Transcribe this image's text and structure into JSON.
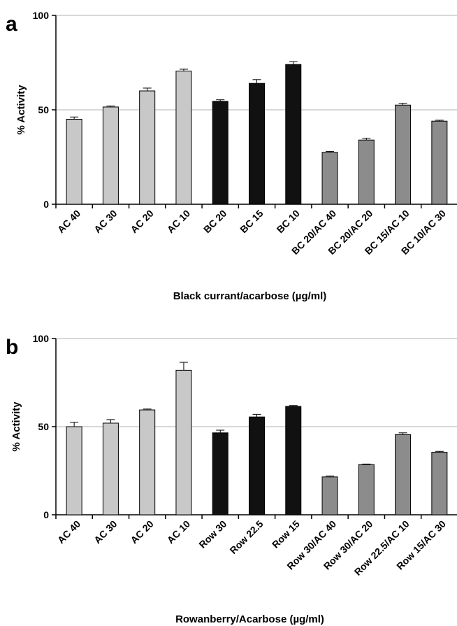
{
  "colors": {
    "ac": "#c8c8c8",
    "berry": "#111111",
    "combo": "#8c8c8c",
    "gridline": "#b0b0b0"
  },
  "chart_data": [
    {
      "type": "bar",
      "panel_label": "a",
      "categories": [
        "AC 40",
        "AC 30",
        "AC 20",
        "AC 10",
        "BC 20",
        "BC 15",
        "BC 10",
        "BC 20/AC 40",
        "BC 20/AC 20",
        "BC 15/AC 10",
        "BC 10/AC 30"
      ],
      "values": [
        45,
        51.5,
        60,
        70.5,
        54.5,
        64,
        74,
        27.5,
        34,
        52.5,
        44
      ],
      "errors": [
        1.2,
        0.5,
        1.5,
        1.0,
        0.8,
        2.0,
        1.5,
        0.5,
        1.0,
        1.0,
        0.5
      ],
      "groups": [
        "ac",
        "ac",
        "ac",
        "ac",
        "berry",
        "berry",
        "berry",
        "combo",
        "combo",
        "combo",
        "combo"
      ],
      "xlabel": "Black currant/acarbose (µg/ml)",
      "ylabel": "% Activity",
      "ylim": [
        0,
        100
      ],
      "yticks": [
        0,
        50,
        100
      ],
      "grid": "horizontal at 50 and 100"
    },
    {
      "type": "bar",
      "panel_label": "b",
      "categories": [
        "AC 40",
        "AC 30",
        "AC 20",
        "AC 10",
        "Row 30",
        "Row 22.5",
        "Row 15",
        "Row 30/AC 40",
        "Row 30/AC 20",
        "Row 22.5/AC 10",
        "Row 15/AC 30"
      ],
      "values": [
        50,
        52,
        59.5,
        82,
        46.5,
        55.5,
        61.5,
        21.5,
        28.5,
        45.5,
        35.5
      ],
      "errors": [
        2.5,
        2.0,
        0.5,
        4.5,
        1.5,
        1.5,
        0.5,
        0.5,
        0.3,
        1.0,
        0.5
      ],
      "groups": [
        "ac",
        "ac",
        "ac",
        "ac",
        "berry",
        "berry",
        "berry",
        "combo",
        "combo",
        "combo",
        "combo"
      ],
      "xlabel": "Rowanberry/Acarbose (µg/ml)",
      "ylabel": "% Activity",
      "ylim": [
        0,
        100
      ],
      "yticks": [
        0,
        50,
        100
      ],
      "grid": "horizontal at 50 and 100"
    }
  ]
}
